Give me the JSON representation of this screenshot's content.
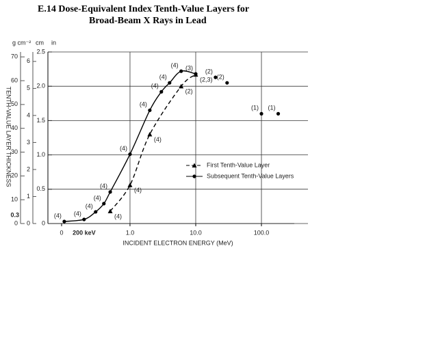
{
  "chart_data": {
    "type": "line",
    "title": "E.14  Dose-Equivalent Index Tenth-Value Layers for",
    "subtitle": "Broad-Beam X Rays in Lead",
    "xlabel": "INCIDENT ELECTRON ENERGY (MeV)",
    "ylabel": "TENTH-VALUE LAYER THICKNESS",
    "y_unit": "in",
    "y2_unit": "cm",
    "y3_unit": "g cm⁻²",
    "xscale": "log",
    "xlim": [
      0.091,
      316
    ],
    "xticks": [
      {
        "value": 0.091,
        "label": "0"
      },
      {
        "value": 1,
        "label": "1.0"
      },
      {
        "value": 10,
        "label": "10.0"
      },
      {
        "value": 100,
        "label": "100.0"
      }
    ],
    "ylim": [
      0,
      2.5
    ],
    "yticks": [
      0,
      {
        "value": 0.5,
        "label": "0.5"
      },
      {
        "value": 1,
        "label": "1.0"
      },
      {
        "value": 1.5,
        "label": "1.5"
      },
      {
        "value": 2,
        "label": "2.0"
      },
      {
        "value": 2.5,
        "label": "2.5"
      }
    ],
    "y2lim": [
      0,
      6.35
    ],
    "y2ticks": [
      0,
      1,
      2,
      3,
      4,
      5,
      6
    ],
    "y3lim": [
      0,
      72.07
    ],
    "y3ticks": [
      0,
      10,
      20,
      30,
      40,
      50,
      60,
      70
    ],
    "grid": true,
    "legend": "center-right",
    "annotations": [
      {
        "text": "200 keV",
        "x": 0.2
      },
      {
        "text": "0.3",
        "y2": 0.3
      }
    ],
    "series": [
      {
        "name": "First Tenth-Value Layer",
        "color": "#000000",
        "marker": "triangle",
        "dash": true,
        "x": [
          0.5,
          1,
          2,
          6,
          10
        ],
        "values": [
          0.18,
          0.56,
          1.3,
          2.0,
          2.17
        ],
        "notes": [
          "(4)",
          "(4)",
          "(4)",
          "(2)",
          "(2,3)"
        ]
      },
      {
        "name": "Subsequent Tenth-Value Layers",
        "color": "#000000",
        "marker": "circle",
        "dash": false,
        "x": [
          0.1,
          0.2,
          0.3,
          0.4,
          0.5,
          1,
          2,
          3,
          4,
          6,
          10
        ],
        "values": [
          0.03,
          0.06,
          0.17,
          0.29,
          0.46,
          1.01,
          1.65,
          1.92,
          2.05,
          2.22,
          2.18
        ],
        "notes": [
          "(4)",
          "(4)",
          "(4)",
          "(4)",
          "(4)",
          "(4)",
          "(4)",
          "(4)",
          "(4)",
          "(4)",
          "(3)"
        ]
      },
      {
        "color": "#000000",
        "marker": "circle",
        "line": false,
        "x": [
          20,
          30,
          100,
          180
        ],
        "values": [
          2.13,
          2.05,
          1.6,
          1.6
        ],
        "notes": [
          "(2)",
          "(2)",
          "(1)",
          "(1)"
        ]
      }
    ]
  }
}
